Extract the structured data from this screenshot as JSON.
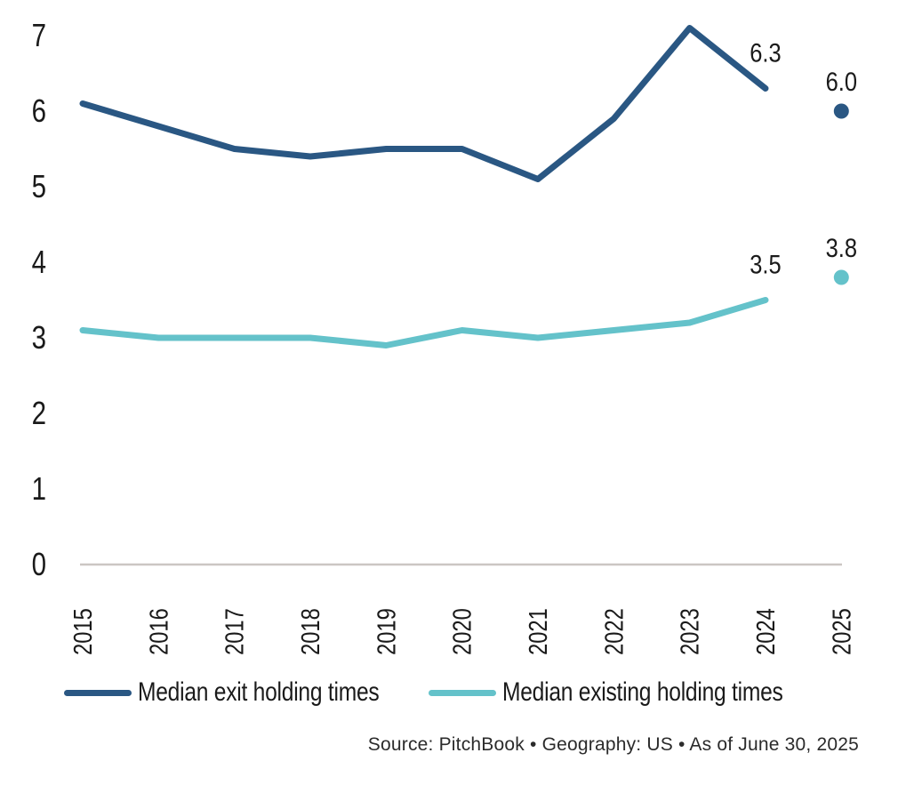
{
  "chart_data": {
    "type": "line",
    "title": "",
    "x": [
      2015,
      2016,
      2017,
      2018,
      2019,
      2020,
      2021,
      2022,
      2023,
      2024,
      2025
    ],
    "series": [
      {
        "id": "median-exit-holding-times",
        "name": "Median exit holding times",
        "color": "#2a5783",
        "values": [
          6.1,
          5.8,
          5.5,
          5.4,
          5.5,
          5.5,
          5.1,
          5.9,
          7.1,
          6.3,
          6.0
        ],
        "last_point_detached_dot": true,
        "point_labels": [
          {
            "x": 2024,
            "value": 6.3,
            "label": "6.3"
          },
          {
            "x": 2025,
            "value": 6.0,
            "label": "6.0"
          }
        ]
      },
      {
        "id": "median-existing-holding-times",
        "name": "Median existing holding times",
        "color": "#64c2ca",
        "values": [
          3.1,
          3.0,
          3.0,
          3.0,
          2.9,
          3.1,
          3.0,
          3.1,
          3.2,
          3.5,
          3.8
        ],
        "last_point_detached_dot": true,
        "point_labels": [
          {
            "x": 2024,
            "value": 3.5,
            "label": "3.5"
          },
          {
            "x": 2025,
            "value": 3.8,
            "label": "3.8"
          }
        ]
      }
    ],
    "xlabel": "",
    "ylabel": "",
    "ylim": [
      0,
      7
    ],
    "yticks": [
      0,
      1,
      2,
      3,
      4,
      5,
      6,
      7
    ],
    "grid": false,
    "axis_line_color": "#cbc6c3",
    "legend_position": "bottom"
  },
  "legend": {
    "items": [
      {
        "label": "Median exit holding times",
        "color": "#2a5783"
      },
      {
        "label": "Median existing holding times",
        "color": "#64c2ca"
      }
    ]
  },
  "footer": {
    "source_text": "Source: PitchBook  •  Geography: US  •  As of June 30, 2025"
  }
}
